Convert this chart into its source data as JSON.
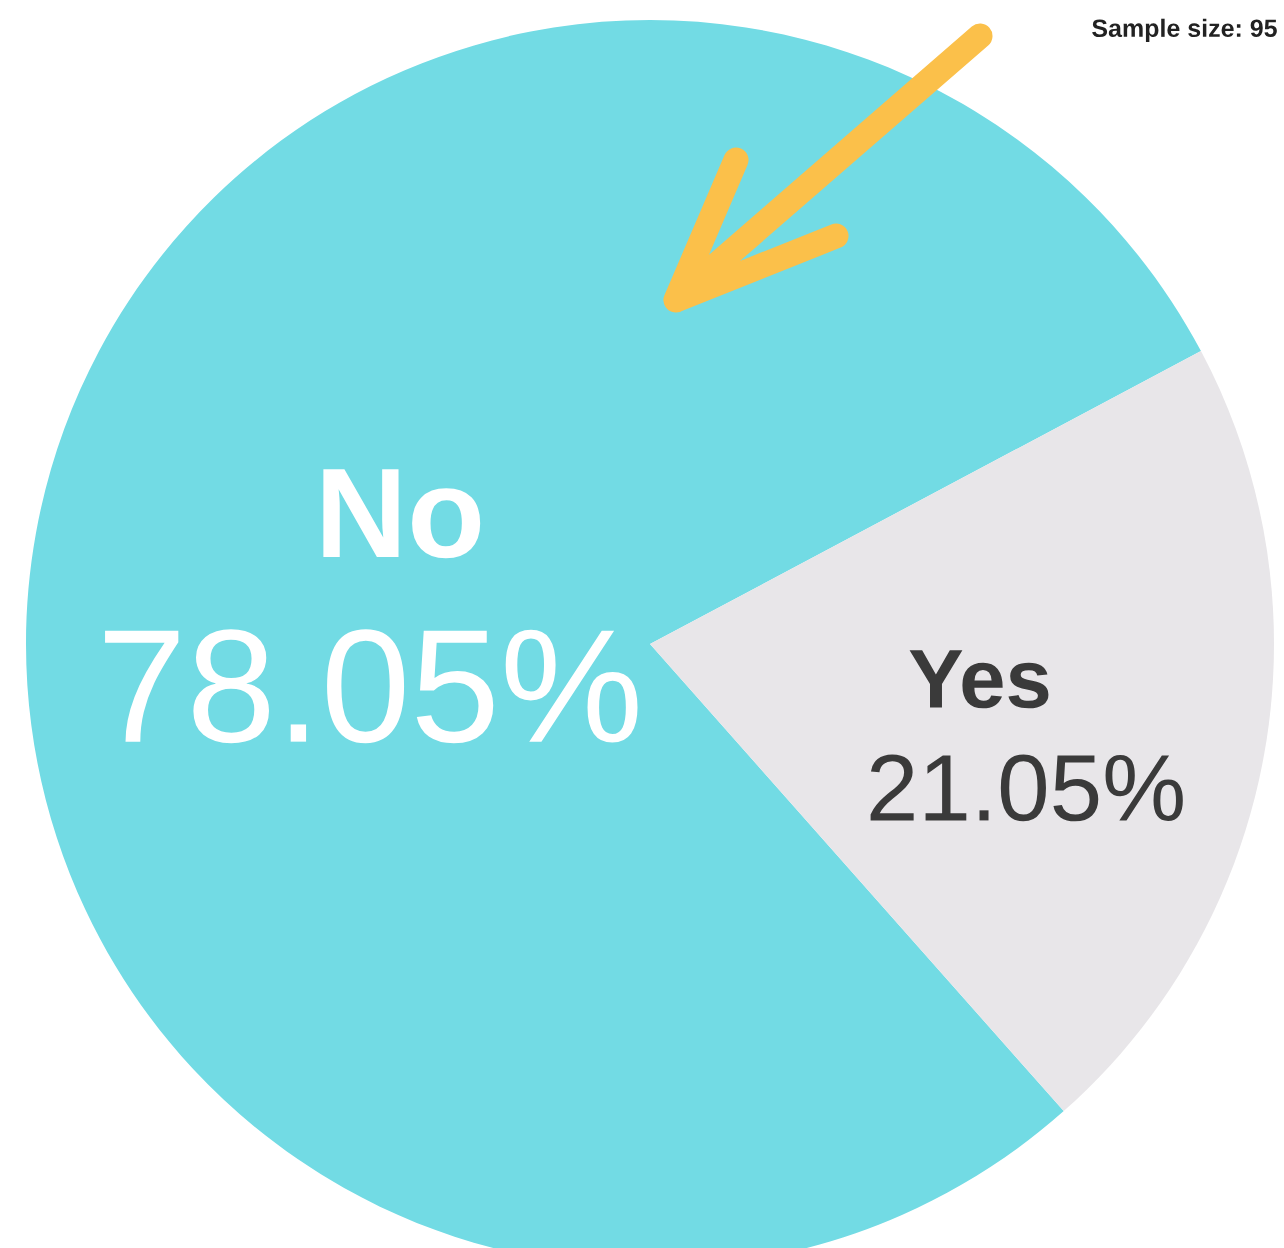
{
  "chart_data": {
    "type": "pie",
    "categories": [
      "No",
      "Yes"
    ],
    "values": [
      78.05,
      21.05
    ],
    "colors": [
      "#72dbe4",
      "#e8e6e9"
    ],
    "value_labels": [
      "78.05%",
      "21.05%"
    ],
    "annotations": [
      "Sample size: 95"
    ]
  }
}
